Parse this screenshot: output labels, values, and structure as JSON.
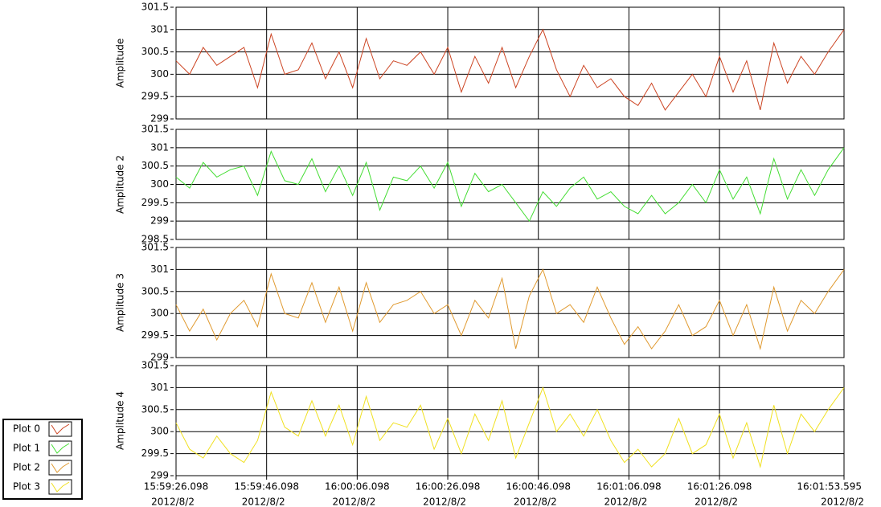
{
  "chart_data": {
    "type": "line",
    "x": [
      0,
      3,
      6,
      9,
      12,
      15,
      18,
      21,
      24,
      27,
      30,
      33,
      36,
      39,
      42,
      45,
      48,
      51,
      54,
      57,
      60,
      63,
      66,
      69,
      72,
      75,
      78,
      81,
      84,
      87,
      90,
      93,
      96,
      99,
      102,
      105,
      108,
      111,
      114,
      117,
      120,
      123,
      126,
      129,
      132,
      135,
      138,
      141,
      144,
      147.497
    ],
    "xlim": [
      0,
      147.497
    ],
    "xticks": [
      {
        "value": 0,
        "label": "15:59:26.098",
        "date": "2012/8/2"
      },
      {
        "value": 20,
        "label": "15:59:46.098",
        "date": "2012/8/2"
      },
      {
        "value": 40,
        "label": "16:00:06.098",
        "date": "2012/8/2"
      },
      {
        "value": 60,
        "label": "16:00:26.098",
        "date": "2012/8/2"
      },
      {
        "value": 80,
        "label": "16:00:46.098",
        "date": "2012/8/2"
      },
      {
        "value": 100,
        "label": "16:01:06.098",
        "date": "2012/8/2"
      },
      {
        "value": 120,
        "label": "16:01:26.098",
        "date": "2012/8/2"
      },
      {
        "value": 147.497,
        "label": "16:01:53.595",
        "date": "2012/8/2"
      }
    ],
    "panels": [
      {
        "ylabel": "Amplitude",
        "ylim": [
          299,
          301.5
        ],
        "yticks": [
          299,
          299.5,
          300,
          300.5,
          301,
          301.5
        ],
        "series": [
          {
            "name": "Plot 0",
            "color": "#cc4422",
            "values": [
              300.3,
              300.0,
              300.6,
              300.2,
              300.4,
              300.6,
              299.7,
              300.9,
              300.0,
              300.1,
              300.7,
              299.9,
              300.5,
              299.7,
              300.8,
              299.9,
              300.3,
              300.2,
              300.5,
              300.0,
              300.6,
              299.6,
              300.4,
              299.8,
              300.6,
              299.7,
              300.4,
              301.0,
              300.1,
              299.5,
              300.2,
              299.7,
              299.9,
              299.5,
              299.3,
              299.8,
              299.2,
              299.6,
              300.0,
              299.5,
              300.4,
              299.6,
              300.3,
              299.2,
              300.7,
              299.8,
              300.4,
              300.0,
              300.5,
              301.0
            ]
          }
        ]
      },
      {
        "ylabel": "Amplitude 2",
        "ylim": [
          298.5,
          301.5
        ],
        "yticks": [
          298.5,
          299,
          299.5,
          300,
          300.5,
          301,
          301.5
        ],
        "series": [
          {
            "name": "Plot 1",
            "color": "#44dd33",
            "values": [
              300.2,
              299.9,
              300.6,
              300.2,
              300.4,
              300.5,
              299.7,
              300.9,
              300.1,
              300.0,
              300.7,
              299.8,
              300.5,
              299.7,
              300.6,
              299.3,
              300.2,
              300.1,
              300.5,
              299.9,
              300.6,
              299.4,
              300.3,
              299.8,
              300.0,
              299.5,
              299.0,
              299.8,
              299.4,
              299.9,
              300.2,
              299.6,
              299.8,
              299.4,
              299.2,
              299.7,
              299.2,
              299.5,
              300.0,
              299.5,
              300.4,
              299.6,
              300.2,
              299.2,
              300.7,
              299.6,
              300.4,
              299.7,
              300.4,
              301.0
            ]
          }
        ]
      },
      {
        "ylabel": "Amplitude 3",
        "ylim": [
          299,
          301.5
        ],
        "yticks": [
          299,
          299.5,
          300,
          300.5,
          301,
          301.5
        ],
        "series": [
          {
            "name": "Plot 2",
            "color": "#e09a30",
            "values": [
              300.2,
              299.6,
              300.1,
              299.4,
              300.0,
              300.3,
              299.7,
              300.9,
              300.0,
              299.9,
              300.7,
              299.8,
              300.6,
              299.6,
              300.7,
              299.8,
              300.2,
              300.3,
              300.5,
              300.0,
              300.2,
              299.5,
              300.3,
              299.9,
              300.8,
              299.2,
              300.4,
              301.0,
              300.0,
              300.2,
              299.8,
              300.6,
              299.9,
              299.3,
              299.7,
              299.2,
              299.6,
              300.2,
              299.5,
              299.7,
              300.3,
              299.5,
              300.2,
              299.2,
              300.6,
              299.6,
              300.3,
              300.0,
              300.5,
              301.0
            ]
          }
        ]
      },
      {
        "ylabel": "Amplitude 4",
        "ylim": [
          299,
          301.5
        ],
        "yticks": [
          299,
          299.5,
          300,
          300.5,
          301,
          301.5
        ],
        "series": [
          {
            "name": "Plot 3",
            "color": "#f0e020",
            "values": [
              300.2,
              299.6,
              299.4,
              299.9,
              299.5,
              299.3,
              299.8,
              300.9,
              300.1,
              299.9,
              300.7,
              299.9,
              300.6,
              299.7,
              300.8,
              299.8,
              300.2,
              300.1,
              300.6,
              299.6,
              300.3,
              299.5,
              300.4,
              299.8,
              300.7,
              299.4,
              300.2,
              301.0,
              300.0,
              300.4,
              299.9,
              300.5,
              299.8,
              299.3,
              299.6,
              299.2,
              299.5,
              300.3,
              299.5,
              299.7,
              300.4,
              299.4,
              300.2,
              299.2,
              300.6,
              299.5,
              300.4,
              300.0,
              300.5,
              301.0
            ]
          }
        ]
      }
    ]
  }
}
